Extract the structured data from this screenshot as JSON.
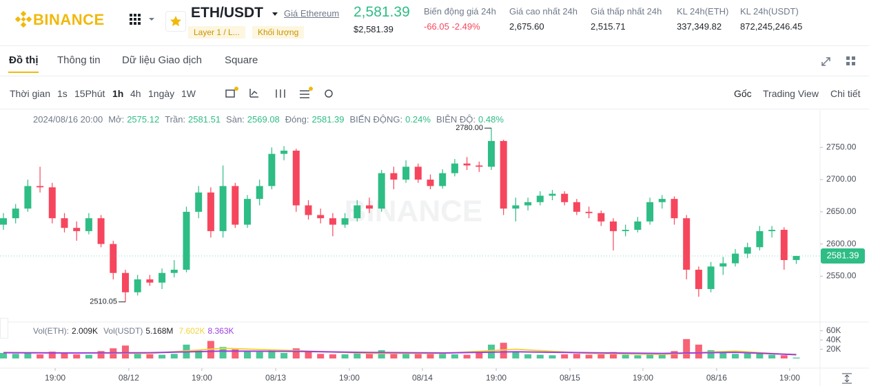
{
  "header": {
    "logo": "BINANCE",
    "symbol": "ETH/USDT",
    "link": "Giá Ethereum",
    "tags": [
      "Layer 1 / L...",
      "Khối lượng"
    ],
    "price": "2,581.39",
    "price_usd": "$2,581.39",
    "stats": [
      {
        "label": "Biến động giá 24h",
        "value": "-66.05 -2.49%"
      },
      {
        "label": "Giá cao nhất 24h",
        "value": "2,675.60"
      },
      {
        "label": "Giá thấp nhất 24h",
        "value": "2,515.71"
      },
      {
        "label": "KL 24h(ETH)",
        "value": "337,349.82"
      },
      {
        "label": "KL 24h(USDT)",
        "value": "872,245,246.45"
      }
    ]
  },
  "tabs": [
    "Đồ thị",
    "Thông tin",
    "Dữ liệu Giao dịch",
    "Square"
  ],
  "toolbar": {
    "intervals": [
      "Thời gian",
      "1s",
      "15Phút",
      "1h",
      "4h",
      "1ngày",
      "1W"
    ],
    "active": "1h",
    "views": [
      "Gốc",
      "Trading View",
      "Chi tiết"
    ]
  },
  "chart_data": {
    "type": "candlestick",
    "up_color": "#2ebd85",
    "down_color": "#f6465d",
    "legend": {
      "date": "2024/08/16 20:00",
      "fields": [
        {
          "label": "Mở:",
          "value": "2575.12"
        },
        {
          "label": "Trần:",
          "value": "2581.51"
        },
        {
          "label": "Sàn:",
          "value": "2569.08"
        },
        {
          "label": "Đóng:",
          "value": "2581.39"
        },
        {
          "label": "BIẾN ĐỘNG:",
          "value": "0.24%"
        },
        {
          "label": "BIÊN ĐỘ:",
          "value": "0.48%"
        }
      ]
    },
    "ylim": [
      2482,
      2808
    ],
    "yticks": [
      {
        "value": 2750,
        "label": "2750.00"
      },
      {
        "value": 2700,
        "label": "2700.00"
      },
      {
        "value": 2650,
        "label": "2650.00"
      },
      {
        "value": 2600,
        "label": "2600.00"
      },
      {
        "value": 2550,
        "label": "2550.00"
      }
    ],
    "last_price": {
      "value": 2581.39,
      "label": "2581.39"
    },
    "high_annotation": {
      "value": 2780,
      "label": "2780.00",
      "index": 40
    },
    "low_annotation": {
      "value": 2510.05,
      "label": "2510.05",
      "index": 10
    },
    "xlim": [
      -0.282,
      66.95
    ],
    "xticks": [
      {
        "value": 4.24,
        "label": "19:00"
      },
      {
        "value": 10.28,
        "label": "08/12"
      },
      {
        "value": 16.27,
        "label": "19:00"
      },
      {
        "value": 22.32,
        "label": "08/13"
      },
      {
        "value": 28.36,
        "label": "19:00"
      },
      {
        "value": 34.35,
        "label": "08/14"
      },
      {
        "value": 40.4,
        "label": "19:00"
      },
      {
        "value": 46.44,
        "label": "08/15"
      },
      {
        "value": 52.43,
        "label": "19:00"
      },
      {
        "value": 58.47,
        "label": "08/16"
      },
      {
        "value": 64.46,
        "label": "19:00"
      }
    ],
    "candles": [
      [
        2630,
        2648,
        2622,
        2640
      ],
      [
        2640,
        2662,
        2632,
        2655
      ],
      [
        2655,
        2700,
        2650,
        2690
      ],
      [
        2690,
        2720,
        2680,
        2688
      ],
      [
        2688,
        2695,
        2632,
        2640
      ],
      [
        2640,
        2648,
        2618,
        2625
      ],
      [
        2625,
        2635,
        2605,
        2620
      ],
      [
        2620,
        2648,
        2615,
        2640
      ],
      [
        2640,
        2645,
        2595,
        2600
      ],
      [
        2600,
        2605,
        2545,
        2555
      ],
      [
        2555,
        2560,
        2510.05,
        2525
      ],
      [
        2525,
        2552,
        2520,
        2545
      ],
      [
        2545,
        2552,
        2535,
        2540
      ],
      [
        2540,
        2562,
        2530,
        2555
      ],
      [
        2555,
        2575,
        2548,
        2560
      ],
      [
        2560,
        2658,
        2556,
        2650
      ],
      [
        2650,
        2690,
        2640,
        2680
      ],
      [
        2680,
        2688,
        2610,
        2620
      ],
      [
        2620,
        2722,
        2610,
        2690
      ],
      [
        2690,
        2695,
        2625,
        2630
      ],
      [
        2630,
        2676,
        2625,
        2670
      ],
      [
        2670,
        2700,
        2660,
        2690
      ],
      [
        2690,
        2750,
        2685,
        2740
      ],
      [
        2740,
        2752,
        2730,
        2745
      ],
      [
        2745,
        2748,
        2650,
        2660
      ],
      [
        2660,
        2668,
        2638,
        2645
      ],
      [
        2645,
        2655,
        2632,
        2640
      ],
      [
        2640,
        2648,
        2612,
        2630
      ],
      [
        2630,
        2648,
        2625,
        2640
      ],
      [
        2640,
        2668,
        2635,
        2660
      ],
      [
        2660,
        2672,
        2648,
        2655
      ],
      [
        2655,
        2715,
        2650,
        2710
      ],
      [
        2710,
        2720,
        2685,
        2700
      ],
      [
        2700,
        2730,
        2695,
        2720
      ],
      [
        2720,
        2725,
        2695,
        2700
      ],
      [
        2700,
        2708,
        2685,
        2690
      ],
      [
        2690,
        2716,
        2686,
        2710
      ],
      [
        2710,
        2732,
        2705,
        2725
      ],
      [
        2725,
        2735,
        2715,
        2722
      ],
      [
        2722,
        2728,
        2712,
        2720
      ],
      [
        2720,
        2780,
        2715,
        2760
      ],
      [
        2760,
        2762,
        2645,
        2655
      ],
      [
        2655,
        2672,
        2635,
        2660
      ],
      [
        2660,
        2672,
        2652,
        2665
      ],
      [
        2665,
        2682,
        2660,
        2675
      ],
      [
        2675,
        2684,
        2668,
        2678
      ],
      [
        2678,
        2682,
        2660,
        2665
      ],
      [
        2665,
        2670,
        2645,
        2650
      ],
      [
        2650,
        2658,
        2640,
        2648
      ],
      [
        2648,
        2652,
        2628,
        2635
      ],
      [
        2635,
        2640,
        2590,
        2620
      ],
      [
        2620,
        2630,
        2612,
        2622
      ],
      [
        2622,
        2642,
        2618,
        2635
      ],
      [
        2635,
        2672,
        2630,
        2665
      ],
      [
        2665,
        2676,
        2655,
        2670
      ],
      [
        2670,
        2674,
        2630,
        2640
      ],
      [
        2640,
        2645,
        2545,
        2560
      ],
      [
        2560,
        2565,
        2518,
        2530
      ],
      [
        2530,
        2572,
        2525,
        2565
      ],
      [
        2565,
        2580,
        2552,
        2570
      ],
      [
        2570,
        2592,
        2565,
        2585
      ],
      [
        2585,
        2602,
        2578,
        2595
      ],
      [
        2595,
        2628,
        2590,
        2620
      ],
      [
        2620,
        2628,
        2610,
        2622
      ],
      [
        2622,
        2626,
        2560,
        2575
      ],
      [
        2575.12,
        2581.51,
        2569.08,
        2581.39
      ]
    ],
    "volume": {
      "legend": [
        {
          "label": "Vol(ETH):",
          "value": "2.009K"
        },
        {
          "label": "Vol(USDT)",
          "value": "5.168M"
        }
      ],
      "ma_labels": [
        "7.602K",
        "8.363K"
      ],
      "ylim": [
        0,
        76000
      ],
      "yticks": [
        {
          "value": 60000,
          "label": "60K"
        },
        {
          "value": 40000,
          "label": "40K"
        },
        {
          "value": 20000,
          "label": "20K"
        }
      ],
      "values": [
        12000,
        10000,
        14000,
        9000,
        15000,
        11000,
        9000,
        8000,
        16000,
        22000,
        28000,
        12000,
        9000,
        8000,
        10000,
        30000,
        18000,
        38000,
        25000,
        20000,
        15000,
        14000,
        20000,
        12000,
        22000,
        14000,
        10000,
        9000,
        9000,
        12000,
        10000,
        18000,
        12000,
        11000,
        10000,
        12000,
        11000,
        9000,
        8000,
        12000,
        30000,
        34000,
        14000,
        9000,
        8000,
        7000,
        9000,
        10000,
        8000,
        9000,
        14000,
        8000,
        7000,
        12000,
        10000,
        16000,
        42000,
        30000,
        18000,
        12000,
        10000,
        11000,
        12000,
        8000,
        7000,
        2009
      ],
      "ma": [
        {
          "color": "#f0d43a",
          "x": [
            0,
            6,
            12,
            18,
            24,
            30,
            36,
            42,
            48,
            54,
            60,
            65
          ],
          "values": [
            13000,
            12000,
            11000,
            22000,
            17000,
            11000,
            11000,
            20000,
            11000,
            9000,
            16000,
            7602
          ]
        },
        {
          "color": "#9b3fe0",
          "x": [
            0,
            6,
            12,
            18,
            24,
            30,
            36,
            42,
            48,
            54,
            60,
            65
          ],
          "values": [
            12500,
            12000,
            12500,
            16000,
            15500,
            13000,
            12000,
            14500,
            12500,
            11000,
            13500,
            8363
          ]
        }
      ]
    }
  }
}
